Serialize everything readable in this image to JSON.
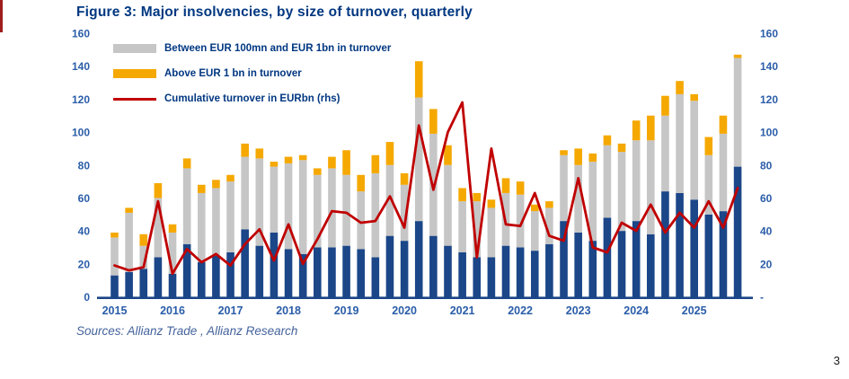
{
  "footer": {
    "sources": "Sources: Allianz Trade , Allianz Research",
    "page_number": "3"
  },
  "chart_data": {
    "type": "bar",
    "variant": "stacked-columns-with-line-overlay",
    "title": "Figure 3:  Major insolvencies, by size of turnover, quarterly",
    "gridlines": false,
    "legend_position": "top-left-inside-plot",
    "x_axis_year_labels": [
      "2015",
      "2016",
      "2017",
      "2018",
      "2019",
      "2020",
      "2021",
      "2022",
      "2023",
      "2024",
      "2025"
    ],
    "x_categories_quarterly": [
      "2015-Q1",
      "2015-Q2",
      "2015-Q3",
      "2015-Q4",
      "2016-Q1",
      "2016-Q2",
      "2016-Q3",
      "2016-Q4",
      "2017-Q1",
      "2017-Q2",
      "2017-Q3",
      "2017-Q4",
      "2018-Q1",
      "2018-Q2",
      "2018-Q3",
      "2018-Q4",
      "2019-Q1",
      "2019-Q2",
      "2019-Q3",
      "2019-Q4",
      "2020-Q1",
      "2020-Q2",
      "2020-Q3",
      "2020-Q4",
      "2021-Q1",
      "2021-Q2",
      "2021-Q3",
      "2021-Q4",
      "2022-Q1",
      "2022-Q2",
      "2022-Q3",
      "2022-Q4",
      "2023-Q1",
      "2023-Q2",
      "2023-Q3",
      "2023-Q4",
      "2024-Q1",
      "2024-Q2",
      "2024-Q3",
      "2024-Q4",
      "2025-Q1",
      "2025-Q2",
      "2025-Q3",
      "2025-Q4"
    ],
    "bar_series": [
      {
        "key": "navy",
        "legend_label": "",
        "in_legend": false,
        "color": "#1B4688",
        "values": [
          13,
          15,
          17,
          24,
          14,
          32,
          21,
          25,
          27,
          41,
          31,
          39,
          29,
          26,
          30,
          30,
          31,
          29,
          24,
          37,
          34,
          46,
          37,
          31,
          27,
          24,
          24,
          31,
          30,
          28,
          32,
          46,
          39,
          34,
          48,
          40,
          46,
          38,
          64,
          63,
          59,
          50,
          52,
          79
        ]
      },
      {
        "key": "gray",
        "legend_label": "Between EUR 100mn and EUR 1bn in turnover",
        "in_legend": true,
        "color": "#C6C6C6",
        "values": [
          23,
          36,
          14,
          36,
          25,
          46,
          42,
          41,
          43,
          44,
          53,
          40,
          52,
          57,
          44,
          48,
          43,
          35,
          51,
          43,
          34,
          75,
          62,
          49,
          31,
          34,
          30,
          32,
          32,
          24,
          22,
          40,
          41,
          48,
          44,
          48,
          49,
          57,
          46,
          60,
          60,
          36,
          47,
          66
        ]
      },
      {
        "key": "orange",
        "legend_label": "Above EUR 1 bn in turnover",
        "in_legend": true,
        "color": "#F5A800",
        "values": [
          3,
          3,
          7,
          9,
          5,
          6,
          5,
          5,
          4,
          8,
          6,
          3,
          4,
          3,
          4,
          7,
          15,
          10,
          11,
          14,
          7,
          22,
          15,
          12,
          8,
          5,
          5,
          9,
          8,
          4,
          4,
          3,
          10,
          5,
          6,
          5,
          12,
          15,
          12,
          8,
          4,
          11,
          11,
          2
        ]
      }
    ],
    "line_series": {
      "key": "cumulative-turnover",
      "legend_label": "Cumulative turnover in EURbn (rhs)",
      "axis": "right",
      "color": "#C00000",
      "values": [
        19,
        16,
        18,
        58,
        14,
        29,
        21,
        26,
        19,
        32,
        41,
        22,
        44,
        20,
        35,
        52,
        51,
        45,
        46,
        61,
        42,
        104,
        65,
        100,
        118,
        24,
        90,
        44,
        43,
        63,
        37,
        34,
        72,
        30,
        27,
        45,
        40,
        56,
        39,
        51,
        42,
        58,
        42,
        66
      ]
    },
    "left_axis": {
      "range": [
        0,
        160
      ],
      "step": 20,
      "labels_top_to_bottom": [
        "160",
        "140",
        "120",
        "100",
        "80",
        "60",
        "40",
        "20",
        "0"
      ]
    },
    "right_axis": {
      "range": [
        0,
        160
      ],
      "step": 20,
      "labels_top_to_bottom": [
        "160",
        "140",
        "120",
        "100",
        "80",
        "60",
        "40",
        "20",
        "-"
      ]
    }
  }
}
